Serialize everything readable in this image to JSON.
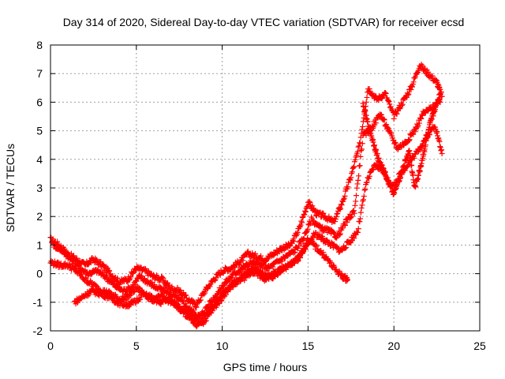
{
  "chart_data": {
    "type": "scatter",
    "title": "Day 314 of 2020, Sidereal Day-to-day VTEC variation (SDTVAR) for receiver ecsd",
    "xlabel": "GPS time / hours",
    "ylabel": "SDTVAR / TECUs",
    "xlim": [
      0,
      25
    ],
    "ylim": [
      -2,
      8
    ],
    "xticks": [
      0,
      5,
      10,
      15,
      20,
      25
    ],
    "yticks": [
      -2,
      -1,
      0,
      1,
      2,
      3,
      4,
      5,
      6,
      7,
      8
    ],
    "grid": true,
    "legend": "none",
    "marker": "plus",
    "color": "#ff0000",
    "series": [
      {
        "x": [
          0.0,
          0.5,
          1.0,
          1.5,
          2.0,
          2.5,
          3.0,
          3.5,
          4.0,
          4.5,
          5.0,
          5.5,
          6.0,
          6.5,
          7.0,
          7.5,
          8.0,
          8.5,
          9.0,
          9.5,
          10.0,
          10.5,
          11.0,
          11.5,
          12.0,
          12.5,
          13.0,
          13.5,
          14.0,
          14.5,
          15.0,
          15.5,
          16.0,
          16.5,
          17.0,
          17.5,
          18.0,
          18.5,
          19.0,
          19.5,
          20.0,
          20.5,
          21.0,
          21.5,
          22.0,
          22.5,
          22.8
        ],
        "y": [
          1.2,
          1.0,
          0.7,
          0.5,
          0.3,
          0.5,
          0.3,
          0.0,
          -0.3,
          -0.2,
          0.2,
          0.1,
          -0.1,
          -0.2,
          -0.5,
          -0.6,
          -0.9,
          -1.1,
          -0.6,
          -0.2,
          0.1,
          0.2,
          0.4,
          0.7,
          0.6,
          0.5,
          0.7,
          0.9,
          1.0,
          1.6,
          2.5,
          2.1,
          2.0,
          1.8,
          2.5,
          3.4,
          4.5,
          6.5,
          6.1,
          6.3,
          5.5,
          6.0,
          6.5,
          7.3,
          7.0,
          6.7,
          6.2
        ]
      },
      {
        "x": [
          0.2,
          0.7,
          1.2,
          1.7,
          2.2,
          2.7,
          3.2,
          3.7,
          4.2,
          4.7,
          5.2,
          5.7,
          6.2,
          6.7,
          7.2,
          7.7,
          8.2,
          8.7,
          9.2,
          9.7,
          10.2,
          10.7,
          11.2,
          11.7,
          12.2,
          12.7,
          13.2,
          13.7,
          14.2,
          14.7,
          15.2,
          15.7,
          16.2,
          16.7,
          17.2,
          17.7,
          18.2,
          18.7,
          19.2,
          19.7,
          20.2,
          20.7,
          21.2,
          21.7,
          22.2,
          22.7
        ],
        "y": [
          1.0,
          0.8,
          0.5,
          0.2,
          0.0,
          0.1,
          -0.1,
          -0.4,
          -0.6,
          -0.5,
          -0.1,
          -0.3,
          -0.5,
          -0.6,
          -0.8,
          -1.0,
          -1.3,
          -1.5,
          -1.1,
          -0.7,
          -0.3,
          0.0,
          0.2,
          0.4,
          0.3,
          0.2,
          0.4,
          0.6,
          0.8,
          1.2,
          1.9,
          1.6,
          1.5,
          1.3,
          1.8,
          2.2,
          4.8,
          5.1,
          5.6,
          5.0,
          4.4,
          4.6,
          5.0,
          5.6,
          5.8,
          6.0
        ]
      },
      {
        "x": [
          0.0,
          0.5,
          1.0,
          1.5,
          2.0,
          2.5,
          3.0,
          3.5,
          4.0,
          4.5,
          5.0,
          5.5,
          6.0,
          6.5,
          7.0,
          7.5,
          8.0,
          8.5,
          9.0,
          9.5,
          10.0,
          10.5,
          11.0,
          11.5,
          12.0,
          12.5,
          13.0,
          13.5,
          14.0,
          14.5,
          15.0,
          15.5,
          16.0,
          16.5,
          17.0,
          17.3
        ],
        "y": [
          0.4,
          0.3,
          0.3,
          0.1,
          -0.2,
          -0.4,
          -0.6,
          -0.7,
          -0.9,
          -0.8,
          -0.5,
          -0.7,
          -0.9,
          -0.8,
          -1.0,
          -1.2,
          -1.5,
          -1.8,
          -1.5,
          -1.1,
          -0.7,
          -0.4,
          -0.2,
          0.1,
          0.0,
          -0.2,
          0.0,
          0.2,
          0.3,
          0.6,
          1.2,
          0.9,
          0.6,
          0.2,
          -0.1,
          -0.2
        ]
      },
      {
        "x": [
          1.4,
          1.9,
          2.4,
          2.9,
          3.4,
          3.9,
          4.4,
          4.9,
          5.4,
          5.9,
          6.4,
          6.9,
          7.4,
          7.9,
          8.4,
          8.9,
          9.4,
          9.9,
          10.4,
          10.9,
          11.4,
          11.9,
          12.4,
          12.9,
          13.4,
          13.9,
          14.4,
          14.9,
          15.4,
          15.9,
          16.4,
          16.9,
          17.4,
          17.9,
          18.4,
          18.9,
          19.4,
          19.9,
          20.4,
          20.9,
          21.4,
          21.9,
          22.4,
          22.8
        ],
        "y": [
          -1.0,
          -0.8,
          -0.6,
          -0.7,
          -0.8,
          -1.0,
          -1.1,
          -1.0,
          -0.7,
          -0.9,
          -1.0,
          -0.9,
          -1.1,
          -1.3,
          -1.6,
          -1.7,
          -1.3,
          -0.9,
          -0.5,
          -0.3,
          -0.1,
          0.2,
          0.0,
          -0.1,
          0.1,
          0.3,
          0.5,
          0.9,
          1.4,
          1.2,
          1.0,
          0.8,
          1.1,
          1.5,
          3.2,
          3.8,
          3.6,
          3.0,
          3.5,
          3.9,
          4.3,
          4.8,
          5.2,
          4.2
        ]
      },
      {
        "x": [
          18.2,
          18.5,
          18.8,
          19.1,
          19.4,
          19.7,
          20.0,
          20.3,
          20.6,
          20.9,
          21.2,
          21.5,
          21.8,
          22.1,
          22.4,
          22.7
        ],
        "y": [
          5.9,
          5.2,
          4.6,
          4.0,
          3.6,
          3.2,
          2.8,
          3.3,
          3.8,
          4.3,
          3.0,
          3.6,
          4.4,
          5.2,
          5.8,
          6.3
        ]
      }
    ]
  }
}
